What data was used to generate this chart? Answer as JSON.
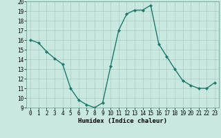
{
  "x": [
    0,
    1,
    2,
    3,
    4,
    5,
    6,
    7,
    8,
    9,
    10,
    11,
    12,
    13,
    14,
    15,
    16,
    17,
    18,
    19,
    20,
    21,
    22,
    23
  ],
  "y": [
    16.0,
    15.7,
    14.8,
    14.1,
    13.5,
    11.0,
    9.8,
    9.3,
    9.0,
    9.5,
    13.3,
    17.0,
    18.7,
    19.1,
    19.1,
    19.6,
    15.6,
    14.3,
    13.0,
    11.8,
    11.3,
    11.0,
    11.0,
    11.6
  ],
  "xlabel": "Humidex (Indice chaleur)",
  "ylim": [
    9,
    20
  ],
  "xlim": [
    -0.5,
    23.5
  ],
  "yticks": [
    9,
    10,
    11,
    12,
    13,
    14,
    15,
    16,
    17,
    18,
    19,
    20
  ],
  "xticks": [
    0,
    1,
    2,
    3,
    4,
    5,
    6,
    7,
    8,
    9,
    10,
    11,
    12,
    13,
    14,
    15,
    16,
    17,
    18,
    19,
    20,
    21,
    22,
    23
  ],
  "line_color": "#1a7a6e",
  "marker_color": "#1a7a6e",
  "bg_color": "#c8e8e0",
  "grid_color": "#aaccc4",
  "tick_fontsize": 5.5,
  "label_fontsize": 6.5,
  "line_width": 1.0,
  "marker_size": 2.2
}
